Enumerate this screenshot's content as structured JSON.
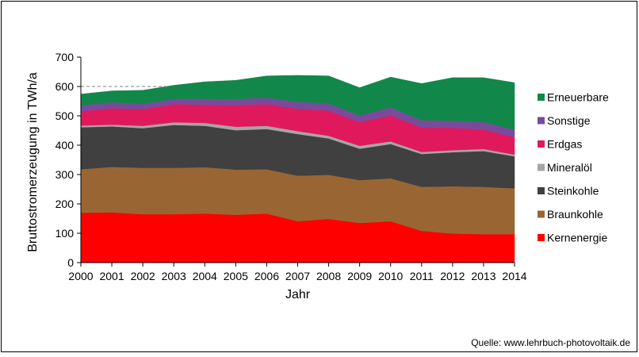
{
  "chart_data": {
    "type": "area",
    "stacked": true,
    "title": "",
    "xlabel": "Jahr",
    "ylabel": "Bruttostromerzeugung  in TWh/a",
    "ylim": [
      0,
      700
    ],
    "yticks": [
      0,
      100,
      200,
      300,
      400,
      500,
      600,
      700
    ],
    "x": [
      2000,
      2001,
      2002,
      2003,
      2004,
      2005,
      2006,
      2007,
      2008,
      2009,
      2010,
      2011,
      2012,
      2013,
      2014
    ],
    "x_tick_labels": [
      "2000",
      "2001",
      "2002",
      "2003",
      "2004",
      "2005",
      "2006",
      "2007",
      "2008",
      "2009",
      "2010",
      "2011",
      "2012",
      "2013",
      "2014"
    ],
    "y_tick_labels": [
      "0",
      "100",
      "200",
      "300",
      "400",
      "500",
      "600",
      "700"
    ],
    "reference_line": 600,
    "grid": false,
    "legend_position": "right",
    "series": [
      {
        "name": "Kernenergie",
        "color": "#ff0000",
        "values": [
          170,
          171,
          165,
          165,
          167,
          163,
          167,
          141,
          149,
          135,
          141,
          108,
          99,
          97,
          97
        ]
      },
      {
        "name": "Braunkohle",
        "color": "#996633",
        "values": [
          148,
          155,
          158,
          158,
          158,
          154,
          151,
          155,
          150,
          146,
          146,
          150,
          161,
          161,
          156
        ]
      },
      {
        "name": "Steinkohle",
        "color": "#404040",
        "values": [
          143,
          138,
          135,
          146,
          141,
          134,
          137,
          142,
          124,
          107,
          117,
          112,
          116,
          122,
          109
        ]
      },
      {
        "name": "Mineralöl",
        "color": "#a6a6a6",
        "values": [
          6,
          6,
          8,
          9,
          10,
          12,
          11,
          10,
          9,
          10,
          9,
          7,
          7,
          7,
          6
        ]
      },
      {
        "name": "Erdgas",
        "color": "#e0195d",
        "values": [
          49,
          56,
          57,
          62,
          62,
          73,
          74,
          76,
          86,
          81,
          89,
          83,
          76,
          67,
          59
        ]
      },
      {
        "name": "Sonstige",
        "color": "#7a4b9c",
        "values": [
          20,
          20,
          18,
          18,
          20,
          21,
          22,
          24,
          24,
          23,
          27,
          25,
          24,
          25,
          26
        ]
      },
      {
        "name": "Erneuerbare",
        "color": "#12874a",
        "values": [
          38,
          39,
          46,
          46,
          58,
          64,
          74,
          90,
          94,
          94,
          103,
          125,
          147,
          151,
          160
        ]
      }
    ],
    "legend_order": [
      "Erneuerbare",
      "Sonstige",
      "Erdgas",
      "Mineralöl",
      "Steinkohle",
      "Braunkohle",
      "Kernenergie"
    ]
  },
  "source_text": "Quelle: www.lehrbuch-photovoltaik.de"
}
